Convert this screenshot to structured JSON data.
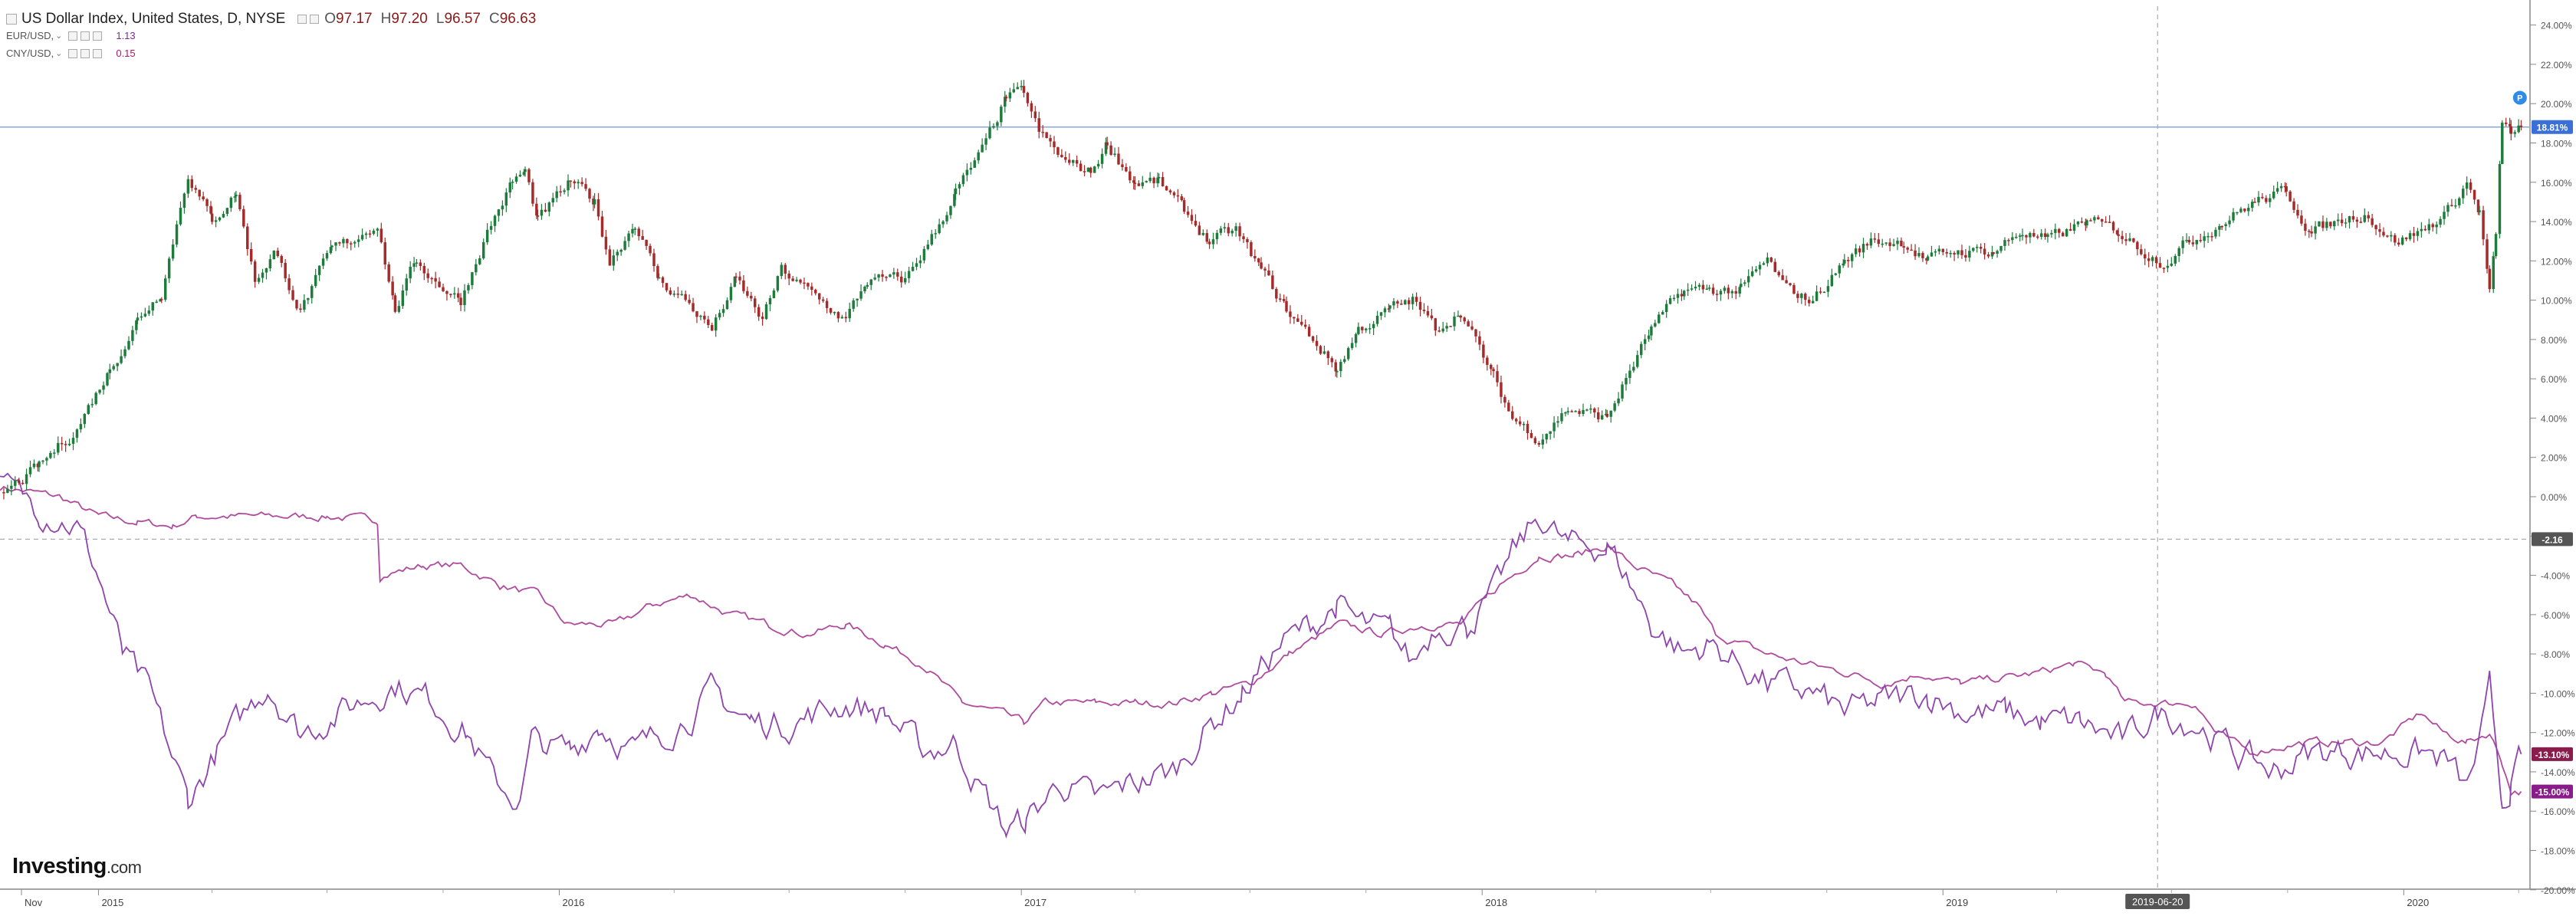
{
  "legend": {
    "main_title": "US Dollar Index, United States, D, NYSE",
    "ohlc": [
      {
        "label": "O",
        "value": "97.17"
      },
      {
        "label": "H",
        "value": "97.20"
      },
      {
        "label": "L",
        "value": "96.57"
      },
      {
        "label": "C",
        "value": "96.63"
      }
    ],
    "eur_label": "EUR/USD,",
    "eur_value": "1.13",
    "cny_label": "CNY/USD,",
    "cny_value": "0.15"
  },
  "logo": {
    "text": "Investing",
    "suffix": ".com"
  },
  "crosshair_date": "2019-06-20",
  "colors": {
    "up_candle": "#1e7b3c",
    "down_candle": "#a52a2a",
    "eur_line": "#8e44ad",
    "cny_line": "#b04a9e",
    "last_price_badge": "#3a6fd8",
    "eur_badge": "#8a1b4a",
    "cny_badge": "#8a1b8a",
    "crosshair_badge": "#555555"
  },
  "chart_data": {
    "type": "line",
    "y_unit": "%",
    "y_range": [
      -20,
      25
    ],
    "y_ticks": [
      "24.00%",
      "22.00%",
      "20.00%",
      "18.00%",
      "16.00%",
      "14.00%",
      "12.00%",
      "10.00%",
      "8.00%",
      "6.00%",
      "4.00%",
      "2.00%",
      "0.00%",
      "-2.00%",
      "-4.00%",
      "-6.00%",
      "-8.00%",
      "-10.00%",
      "-12.00%",
      "-14.00%",
      "-16.00%",
      "-18.00%",
      "-20.00%"
    ],
    "x_range": [
      "2014-10-15",
      "2020-04-10"
    ],
    "x_ticks": [
      {
        "date": "2014-11-01",
        "label": "Nov"
      },
      {
        "date": "2015-01-01",
        "label": "2015"
      },
      {
        "date": "2016-01-01",
        "label": "2016"
      },
      {
        "date": "2017-01-01",
        "label": "2017"
      },
      {
        "date": "2018-01-01",
        "label": "2018"
      },
      {
        "date": "2019-01-01",
        "label": "2019"
      },
      {
        "date": "2020-01-01",
        "label": "2020"
      }
    ],
    "crosshair": {
      "x": "2019-06-20",
      "y": -2.16,
      "y_label": "-2.16"
    },
    "last_value_labels": [
      {
        "series": "US Dollar Index",
        "value": 18.81,
        "label": "18.81%"
      },
      {
        "series": "EUR/USD",
        "value": -13.1,
        "label": "-13.10%"
      },
      {
        "series": "CNY/USD",
        "value": -15.0,
        "label": "-15.00%"
      }
    ],
    "series": [
      {
        "name": "US Dollar Index",
        "style": "candlestick",
        "points": [
          [
            "2014-10-15",
            0.0
          ],
          [
            "2014-11-15",
            1.5
          ],
          [
            "2014-12-15",
            3.5
          ],
          [
            "2015-01-10",
            6.5
          ],
          [
            "2015-02-01",
            9.0
          ],
          [
            "2015-02-20",
            10.5
          ],
          [
            "2015-03-13",
            16.5
          ],
          [
            "2015-04-01",
            14.0
          ],
          [
            "2015-04-20",
            15.5
          ],
          [
            "2015-05-05",
            11.0
          ],
          [
            "2015-05-20",
            12.5
          ],
          [
            "2015-06-10",
            9.5
          ],
          [
            "2015-07-05",
            12.5
          ],
          [
            "2015-07-20",
            13.0
          ],
          [
            "2015-08-10",
            14.0
          ],
          [
            "2015-08-24",
            9.5
          ],
          [
            "2015-09-10",
            12.0
          ],
          [
            "2015-09-25",
            11.0
          ],
          [
            "2015-10-15",
            10.0
          ],
          [
            "2015-11-05",
            13.5
          ],
          [
            "2015-11-25",
            16.0
          ],
          [
            "2015-12-05",
            16.5
          ],
          [
            "2015-12-15",
            14.0
          ],
          [
            "2016-01-10",
            16.0
          ],
          [
            "2016-01-29",
            15.0
          ],
          [
            "2016-02-10",
            12.0
          ],
          [
            "2016-03-01",
            14.0
          ],
          [
            "2016-03-20",
            11.0
          ],
          [
            "2016-04-10",
            10.0
          ],
          [
            "2016-05-01",
            8.5
          ],
          [
            "2016-05-20",
            11.0
          ],
          [
            "2016-06-10",
            9.0
          ],
          [
            "2016-06-25",
            11.5
          ],
          [
            "2016-07-25",
            10.0
          ],
          [
            "2016-08-15",
            9.0
          ],
          [
            "2016-09-01",
            11.0
          ],
          [
            "2016-10-01",
            11.0
          ],
          [
            "2016-10-25",
            13.5
          ],
          [
            "2016-11-10",
            15.5
          ],
          [
            "2016-12-01",
            17.5
          ],
          [
            "2016-12-20",
            20.3
          ],
          [
            "2017-01-03",
            20.5
          ],
          [
            "2017-01-15",
            18.5
          ],
          [
            "2017-02-05",
            17.0
          ],
          [
            "2017-02-25",
            16.5
          ],
          [
            "2017-03-10",
            18.0
          ],
          [
            "2017-04-01",
            16.0
          ],
          [
            "2017-04-20",
            16.0
          ],
          [
            "2017-05-10",
            14.5
          ],
          [
            "2017-05-30",
            13.0
          ],
          [
            "2017-06-20",
            13.5
          ],
          [
            "2017-07-10",
            11.5
          ],
          [
            "2017-07-30",
            9.5
          ],
          [
            "2017-08-20",
            8.0
          ],
          [
            "2017-09-08",
            6.5
          ],
          [
            "2017-09-25",
            8.5
          ],
          [
            "2017-10-20",
            9.5
          ],
          [
            "2017-11-07",
            10.0
          ],
          [
            "2017-11-25",
            8.5
          ],
          [
            "2017-12-15",
            9.5
          ],
          [
            "2018-01-10",
            6.0
          ],
          [
            "2018-01-25",
            4.0
          ],
          [
            "2018-02-15",
            3.0
          ],
          [
            "2018-03-10",
            4.5
          ],
          [
            "2018-04-10",
            4.0
          ],
          [
            "2018-04-25",
            6.0
          ],
          [
            "2018-05-15",
            8.5
          ],
          [
            "2018-06-10",
            10.5
          ],
          [
            "2018-06-30",
            10.5
          ],
          [
            "2018-07-25",
            10.5
          ],
          [
            "2018-08-15",
            12.0
          ],
          [
            "2018-08-30",
            10.5
          ],
          [
            "2018-09-20",
            10.0
          ],
          [
            "2018-10-15",
            12.0
          ],
          [
            "2018-11-05",
            13.0
          ],
          [
            "2018-12-01",
            13.0
          ],
          [
            "2018-12-20",
            12.0
          ],
          [
            "2019-01-10",
            12.5
          ],
          [
            "2019-02-10",
            12.5
          ],
          [
            "2019-03-05",
            13.5
          ],
          [
            "2019-03-25",
            13.0
          ],
          [
            "2019-04-25",
            14.0
          ],
          [
            "2019-05-20",
            13.5
          ],
          [
            "2019-06-10",
            12.5
          ],
          [
            "2019-06-25",
            12.0
          ],
          [
            "2019-07-15",
            13.0
          ],
          [
            "2019-08-10",
            14.0
          ],
          [
            "2019-09-05",
            15.0
          ],
          [
            "2019-09-30",
            15.5
          ],
          [
            "2019-10-20",
            13.5
          ],
          [
            "2019-11-10",
            14.0
          ],
          [
            "2019-12-01",
            14.5
          ],
          [
            "2019-12-25",
            13.0
          ],
          [
            "2020-01-15",
            13.5
          ],
          [
            "2020-02-05",
            14.5
          ],
          [
            "2020-02-20",
            16.0
          ],
          [
            "2020-03-01",
            14.5
          ],
          [
            "2020-03-09",
            10.5
          ],
          [
            "2020-03-14",
            13.0
          ],
          [
            "2020-03-19",
            19.0
          ],
          [
            "2020-03-26",
            18.5
          ],
          [
            "2020-04-03",
            18.81
          ]
        ]
      },
      {
        "name": "EUR/USD",
        "style": "line",
        "points": [
          [
            "2014-10-15",
            0.5
          ],
          [
            "2014-11-15",
            -0.5
          ],
          [
            "2014-12-15",
            -1.5
          ],
          [
            "2015-01-01",
            -4.0
          ],
          [
            "2015-01-20",
            -8.0
          ],
          [
            "2015-02-10",
            -10.0
          ],
          [
            "2015-03-13",
            -15.5
          ],
          [
            "2015-04-05",
            -13.0
          ],
          [
            "2015-05-15",
            -9.5
          ],
          [
            "2015-06-10",
            -12.0
          ],
          [
            "2015-07-10",
            -11.0
          ],
          [
            "2015-08-24",
            -9.5
          ],
          [
            "2015-09-25",
            -10.5
          ],
          [
            "2015-10-20",
            -12.0
          ],
          [
            "2015-11-10",
            -14.5
          ],
          [
            "2015-12-01",
            -15.5
          ],
          [
            "2015-12-10",
            -12.5
          ],
          [
            "2016-01-10",
            -13.0
          ],
          [
            "2016-02-01",
            -11.5
          ],
          [
            "2016-03-01",
            -13.0
          ],
          [
            "2016-04-15",
            -11.0
          ],
          [
            "2016-05-01",
            -10.0
          ],
          [
            "2016-06-01",
            -11.5
          ],
          [
            "2016-07-01",
            -11.5
          ],
          [
            "2016-08-15",
            -10.5
          ],
          [
            "2016-09-15",
            -11.0
          ],
          [
            "2016-10-15",
            -13.0
          ],
          [
            "2016-11-10",
            -12.5
          ],
          [
            "2016-12-01",
            -15.0
          ],
          [
            "2016-12-20",
            -17.0
          ],
          [
            "2017-01-05",
            -16.5
          ],
          [
            "2017-02-01",
            -14.5
          ],
          [
            "2017-03-01",
            -15.5
          ],
          [
            "2017-04-01",
            -14.5
          ],
          [
            "2017-05-01",
            -14.0
          ],
          [
            "2017-05-25",
            -12.0
          ],
          [
            "2017-06-25",
            -10.0
          ],
          [
            "2017-07-25",
            -7.5
          ],
          [
            "2017-08-20",
            -6.5
          ],
          [
            "2017-09-08",
            -5.5
          ],
          [
            "2017-09-25",
            -6.5
          ],
          [
            "2017-10-20",
            -7.0
          ],
          [
            "2017-11-07",
            -8.5
          ],
          [
            "2017-11-25",
            -6.5
          ],
          [
            "2017-12-20",
            -6.5
          ],
          [
            "2018-01-10",
            -5.0
          ],
          [
            "2018-01-25",
            -3.0
          ],
          [
            "2018-02-15",
            -1.0
          ],
          [
            "2018-03-10",
            -2.5
          ],
          [
            "2018-04-10",
            -2.5
          ],
          [
            "2018-04-25",
            -4.0
          ],
          [
            "2018-05-15",
            -6.5
          ],
          [
            "2018-06-10",
            -8.0
          ],
          [
            "2018-06-30",
            -7.5
          ],
          [
            "2018-08-15",
            -9.5
          ],
          [
            "2018-09-20",
            -10.0
          ],
          [
            "2018-10-15",
            -11.0
          ],
          [
            "2018-11-10",
            -10.5
          ],
          [
            "2018-12-20",
            -10.0
          ],
          [
            "2019-01-20",
            -11.0
          ],
          [
            "2019-02-20",
            -11.0
          ],
          [
            "2019-03-20",
            -11.5
          ],
          [
            "2019-04-20",
            -11.5
          ],
          [
            "2019-05-25",
            -12.5
          ],
          [
            "2019-06-20",
            -11.0
          ],
          [
            "2019-07-20",
            -11.5
          ],
          [
            "2019-08-20",
            -13.0
          ],
          [
            "2019-09-20",
            -14.0
          ],
          [
            "2019-10-20",
            -13.0
          ],
          [
            "2019-11-20",
            -13.0
          ],
          [
            "2019-12-20",
            -13.0
          ],
          [
            "2020-01-15",
            -13.0
          ],
          [
            "2020-02-05",
            -13.5
          ],
          [
            "2020-02-20",
            -15.0
          ],
          [
            "2020-03-05",
            -11.5
          ],
          [
            "2020-03-09",
            -10.0
          ],
          [
            "2020-03-19",
            -15.5
          ],
          [
            "2020-03-26",
            -14.5
          ],
          [
            "2020-04-03",
            -13.1
          ]
        ]
      },
      {
        "name": "CNY/USD",
        "style": "line",
        "points": [
          [
            "2014-10-15",
            0.5
          ],
          [
            "2014-12-01",
            0.0
          ],
          [
            "2015-01-01",
            -1.0
          ],
          [
            "2015-02-01",
            -1.3
          ],
          [
            "2015-03-01",
            -1.5
          ],
          [
            "2015-03-20",
            -1.0
          ],
          [
            "2015-05-01",
            -1.0
          ],
          [
            "2015-07-01",
            -1.0
          ],
          [
            "2015-08-10",
            -1.2
          ],
          [
            "2015-08-12",
            -4.0
          ],
          [
            "2015-09-15",
            -3.5
          ],
          [
            "2015-10-15",
            -3.5
          ],
          [
            "2015-11-15",
            -4.5
          ],
          [
            "2015-12-15",
            -5.0
          ],
          [
            "2016-01-07",
            -6.5
          ],
          [
            "2016-02-15",
            -6.5
          ],
          [
            "2016-03-15",
            -5.5
          ],
          [
            "2016-04-15",
            -5.0
          ],
          [
            "2016-05-15",
            -6.0
          ],
          [
            "2016-06-15",
            -6.5
          ],
          [
            "2016-07-15",
            -7.0
          ],
          [
            "2016-08-15",
            -6.5
          ],
          [
            "2016-09-15",
            -7.5
          ],
          [
            "2016-10-15",
            -8.5
          ],
          [
            "2016-11-15",
            -10.5
          ],
          [
            "2016-12-15",
            -11.0
          ],
          [
            "2017-01-03",
            -11.5
          ],
          [
            "2017-01-20",
            -10.5
          ],
          [
            "2017-03-01",
            -10.5
          ],
          [
            "2017-04-01",
            -10.5
          ],
          [
            "2017-05-01",
            -10.5
          ],
          [
            "2017-06-01",
            -10.0
          ],
          [
            "2017-07-01",
            -9.5
          ],
          [
            "2017-08-01",
            -8.0
          ],
          [
            "2017-09-10",
            -6.5
          ],
          [
            "2017-10-15",
            -7.0
          ],
          [
            "2017-11-15",
            -6.5
          ],
          [
            "2017-12-15",
            -6.5
          ],
          [
            "2018-01-15",
            -4.5
          ],
          [
            "2018-02-15",
            -3.0
          ],
          [
            "2018-03-15",
            -3.0
          ],
          [
            "2018-04-10",
            -2.5
          ],
          [
            "2018-05-01",
            -3.5
          ],
          [
            "2018-06-01",
            -4.5
          ],
          [
            "2018-06-20",
            -5.5
          ],
          [
            "2018-07-05",
            -7.0
          ],
          [
            "2018-08-15",
            -8.0
          ],
          [
            "2018-09-15",
            -8.5
          ],
          [
            "2018-10-20",
            -9.0
          ],
          [
            "2018-11-15",
            -9.5
          ],
          [
            "2018-12-15",
            -9.0
          ],
          [
            "2019-01-15",
            -9.5
          ],
          [
            "2019-03-15",
            -9.0
          ],
          [
            "2019-04-15",
            -8.5
          ],
          [
            "2019-05-10",
            -9.0
          ],
          [
            "2019-05-25",
            -10.5
          ],
          [
            "2019-06-20",
            -10.5
          ],
          [
            "2019-07-20",
            -10.5
          ],
          [
            "2019-08-05",
            -12.0
          ],
          [
            "2019-09-01",
            -13.0
          ],
          [
            "2019-10-15",
            -12.5
          ],
          [
            "2019-11-15",
            -12.5
          ],
          [
            "2019-12-15",
            -12.5
          ],
          [
            "2020-01-15",
            -11.0
          ],
          [
            "2020-02-01",
            -12.0
          ],
          [
            "2020-02-20",
            -12.5
          ],
          [
            "2020-03-09",
            -12.0
          ],
          [
            "2020-03-19",
            -13.5
          ],
          [
            "2020-03-26",
            -15.0
          ],
          [
            "2020-04-03",
            -15.0
          ]
        ]
      }
    ]
  }
}
